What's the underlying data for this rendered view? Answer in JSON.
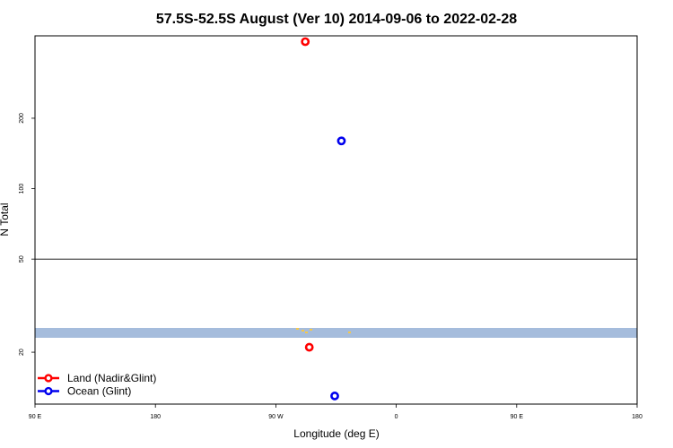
{
  "chart_data": {
    "type": "scatter",
    "title": "57.5S-52.5S August (Ver 10)   2014-09-06 to 2022-02-28",
    "xlabel": "Longitude (deg E)",
    "ylabel": "N Total",
    "x_tick_labels": [
      "90 E",
      "180",
      "90 W",
      "0",
      "90 E",
      "180"
    ],
    "y_tick_labels": [
      "20",
      "50",
      "100",
      "200"
    ],
    "xlim": [
      90,
      540
    ],
    "y_scale": "log",
    "ylim": [
      12,
      450
    ],
    "hline_y": 50,
    "series": [
      {
        "name": "Land (Nadir&Glint)",
        "color": "#ff0000",
        "x": [
          292,
          295
        ],
        "y": [
          425,
          21
        ]
      },
      {
        "name": "Ocean (Glint)",
        "color": "#0000ee",
        "x": [
          319,
          314
        ],
        "y": [
          160,
          13
        ]
      }
    ],
    "land_band_color": "#a5bcdc",
    "land_speck_color": "#f5c84a",
    "legend_position": "bottom-left"
  }
}
